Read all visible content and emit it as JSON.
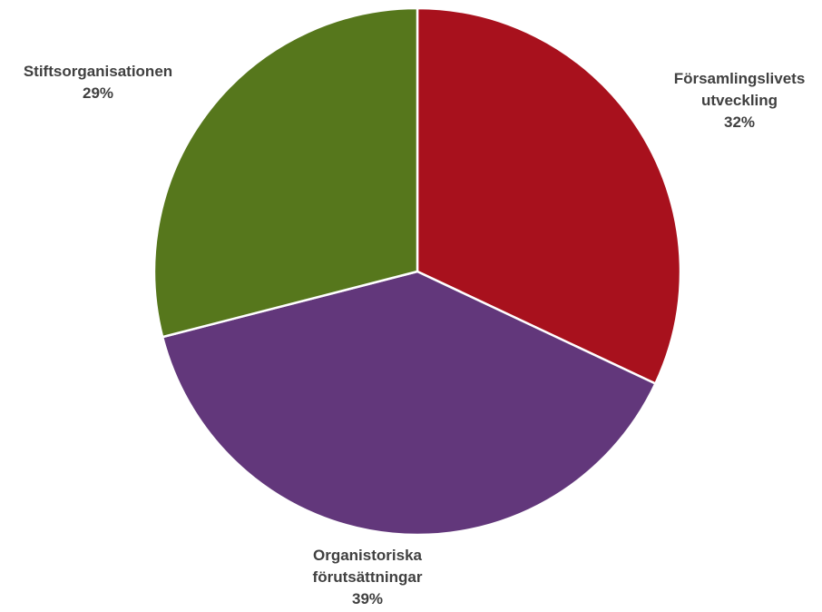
{
  "chart_data": {
    "type": "pie",
    "title": "",
    "start_angle_deg": 0,
    "direction": "clockwise",
    "slices": [
      {
        "label_lines": [
          "Församlingslivets",
          "utveckling"
        ],
        "value_label": "32%",
        "value": 32,
        "color": "#A8111D"
      },
      {
        "label_lines": [
          "Organistoriska",
          "förutsättningar"
        ],
        "value_label": "39%",
        "value": 39,
        "color": "#62377B"
      },
      {
        "label_lines": [
          "Stiftsorganisationen"
        ],
        "value_label": "29%",
        "value": 29,
        "color": "#56771C"
      }
    ]
  }
}
